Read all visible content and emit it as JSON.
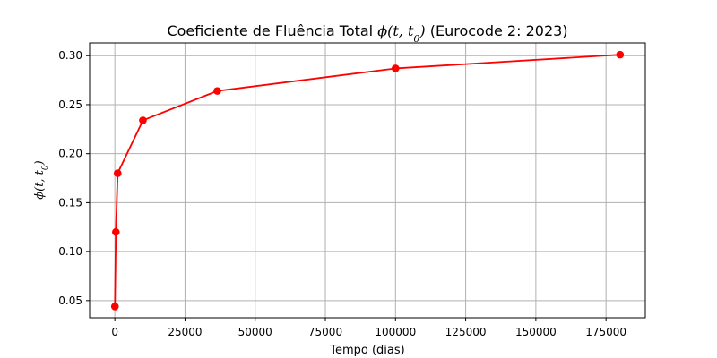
{
  "chart_data": {
    "type": "line",
    "title_prefix": "Coeficiente de Fluência Total ",
    "title_symbol": "ϕ(t, t",
    "title_subscript": "0",
    "title_symbol_close": ")",
    "title_suffix": " (Eurocode 2: 2023)",
    "xlabel": "Tempo (dias)",
    "ylabel_symbol": "ϕ(t, t",
    "ylabel_subscript": "0",
    "ylabel_close": ")",
    "xlim": [
      -8990,
      189000
    ],
    "ylim": [
      0.0325,
      0.313
    ],
    "x_ticks": [
      0,
      25000,
      50000,
      75000,
      100000,
      125000,
      150000,
      175000
    ],
    "x_tick_labels": [
      "0",
      "25000",
      "50000",
      "75000",
      "100000",
      "125000",
      "150000",
      "175000"
    ],
    "y_ticks": [
      0.05,
      0.1,
      0.15,
      0.2,
      0.25,
      0.3
    ],
    "y_tick_labels": [
      "0.05",
      "0.10",
      "0.15",
      "0.20",
      "0.25",
      "0.30"
    ],
    "grid": true,
    "series": [
      {
        "color": "#ff0000",
        "marker": "circle",
        "x": [
          28,
          365,
          1000,
          10000,
          36500,
          100000,
          180000
        ],
        "y": [
          0.044,
          0.12,
          0.18,
          0.234,
          0.264,
          0.287,
          0.301
        ]
      }
    ]
  }
}
